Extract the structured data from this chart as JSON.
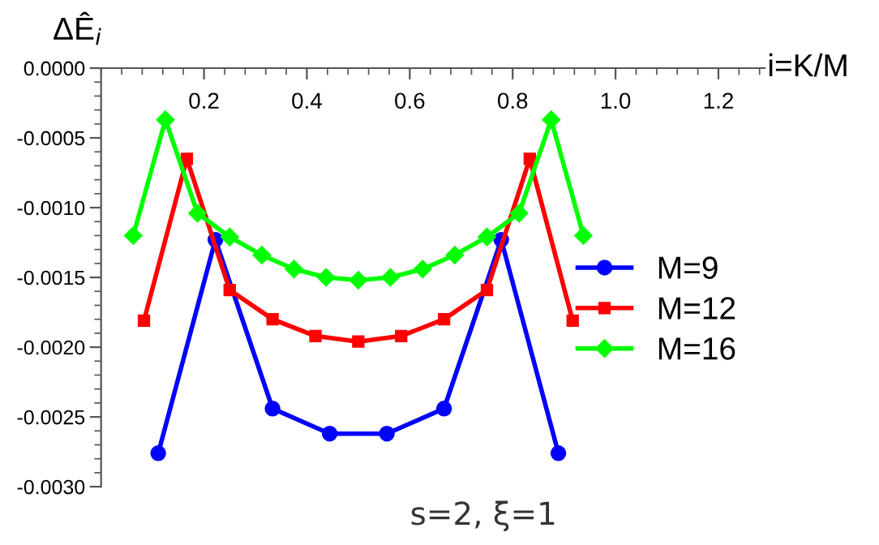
{
  "chart_data": {
    "type": "line",
    "xlabel": "i=K/M",
    "ylabel": "ΔÊ$_{i}$",
    "xlim": [
      0,
      1.29
    ],
    "ylim": [
      -0.003,
      0
    ],
    "xticks": [
      0.2,
      0.4,
      0.6,
      0.8,
      {
        "value": 1.0,
        "label": "1.0"
      },
      1.2
    ],
    "yticks": [
      {
        "value": -0.003,
        "label": "-0.0030"
      },
      {
        "value": -0.0025,
        "label": "-0.0025"
      },
      {
        "value": -0.002,
        "label": "-0.0020"
      },
      {
        "value": -0.0015,
        "label": "-0.0015"
      },
      {
        "value": -0.001,
        "label": "-0.0010"
      },
      {
        "value": -0.0005,
        "label": "-0.0005"
      },
      {
        "value": 0,
        "label": "0.0000"
      }
    ],
    "grid": false,
    "legend": "right",
    "line_style": "solid",
    "annotations": [
      "s=2, ξ=1"
    ],
    "series": [
      {
        "name": "M=9",
        "color": "#0000ff",
        "marker": "circle",
        "x": [
          0.1111,
          0.2222,
          0.3333,
          0.4444,
          0.5556,
          0.6667,
          0.7778,
          0.8889
        ],
        "values": [
          -0.00276,
          -0.00123,
          -0.00244,
          -0.00262,
          -0.00262,
          -0.00244,
          -0.00123,
          -0.00276
        ]
      },
      {
        "name": "M=12",
        "color": "#ff0000",
        "marker": "square",
        "x": [
          0.0833,
          0.1667,
          0.25,
          0.3333,
          0.4167,
          0.5,
          0.5833,
          0.6667,
          0.75,
          0.8333,
          0.9167
        ],
        "values": [
          -0.00181,
          -0.00065,
          -0.00159,
          -0.0018,
          -0.00192,
          -0.00196,
          -0.00192,
          -0.0018,
          -0.00159,
          -0.00065,
          -0.00181
        ]
      },
      {
        "name": "M=16",
        "color": "#00ff00",
        "marker": "diamond",
        "x": [
          0.0625,
          0.125,
          0.1875,
          0.25,
          0.3125,
          0.375,
          0.4375,
          0.5,
          0.5625,
          0.625,
          0.6875,
          0.75,
          0.8125,
          0.875,
          0.9375
        ],
        "values": [
          -0.0012,
          -0.00037,
          -0.00104,
          -0.00121,
          -0.00134,
          -0.00144,
          -0.0015,
          -0.00152,
          -0.0015,
          -0.00144,
          -0.00134,
          -0.00121,
          -0.00104,
          -0.00037,
          -0.0012
        ]
      }
    ]
  }
}
